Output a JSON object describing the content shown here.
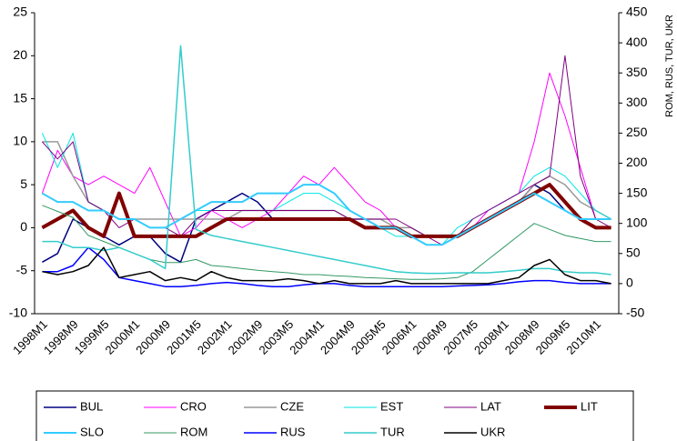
{
  "chart_data": {
    "type": "line",
    "y2_label": "ROM, RUS, TUR, UKR",
    "categories": [
      "1998M1",
      null,
      "1998M9",
      null,
      "1999M5",
      null,
      "2000M1",
      null,
      "2000M9",
      null,
      "2001M5",
      null,
      "2002M1",
      null,
      "2002M9",
      null,
      "2003M5",
      null,
      "2004M1",
      null,
      "2004M9",
      null,
      "2005M5",
      null,
      "2006M1",
      null,
      "2006M9",
      null,
      "2007M5",
      null,
      "2008M1",
      null,
      "2008M9",
      null,
      "2009M5",
      null,
      "2010M1",
      null
    ],
    "ylim": [
      -10,
      25
    ],
    "yticks": [
      -10,
      -5,
      0,
      5,
      10,
      15,
      20,
      25
    ],
    "y2lim": [
      -50,
      450
    ],
    "y2ticks": [
      -50,
      0,
      50,
      100,
      150,
      200,
      250,
      300,
      350,
      400,
      450
    ],
    "legend": "bottom",
    "series": [
      {
        "name": "BUL",
        "color": "#000080",
        "width": 1.5,
        "values": [
          -4,
          -3,
          1,
          0,
          -1,
          -2,
          -1,
          -1,
          -3,
          -4,
          1,
          2,
          3,
          4,
          3,
          1,
          1,
          1,
          1,
          1,
          1,
          1,
          0,
          0,
          -1,
          -2,
          -2,
          -1,
          0,
          1,
          2,
          3,
          5,
          4,
          2,
          1,
          1,
          1
        ]
      },
      {
        "name": "CRO",
        "color": "#ff00ff",
        "width": 1,
        "values": [
          4,
          9,
          6,
          5,
          6,
          5,
          4,
          7,
          3,
          -1,
          0,
          2,
          1,
          0,
          1,
          2,
          4,
          6,
          5,
          7,
          5,
          3,
          2,
          0,
          -1,
          -2,
          -2,
          -1,
          0,
          2,
          3,
          4,
          10,
          18,
          13,
          7,
          1,
          1
        ]
      },
      {
        "name": "CZE",
        "color": "#999999",
        "width": 1.5,
        "values": [
          10,
          10,
          6,
          3,
          2,
          1,
          1,
          1,
          1,
          1,
          1,
          1,
          1,
          2,
          2,
          2,
          2,
          2,
          2,
          2,
          1,
          1,
          1,
          0,
          0,
          -1,
          -1,
          -1,
          0,
          1,
          2,
          3,
          5,
          6,
          5,
          3,
          2,
          1
        ]
      },
      {
        "name": "EST",
        "color": "#00e5e5",
        "width": 1,
        "values": [
          11,
          7,
          11,
          3,
          2,
          1,
          1,
          0,
          0,
          1,
          2,
          2,
          2,
          2,
          2,
          2,
          3,
          4,
          4,
          3,
          2,
          1,
          0,
          -1,
          -1,
          -2,
          -2,
          0,
          1,
          2,
          3,
          4,
          6,
          7,
          6,
          4,
          2,
          1
        ]
      },
      {
        "name": "LAT",
        "color": "#800080",
        "width": 1,
        "values": [
          10,
          8,
          10,
          3,
          2,
          0,
          1,
          0,
          0,
          -1,
          1,
          2,
          2,
          2,
          2,
          2,
          2,
          2,
          2,
          2,
          1,
          1,
          1,
          1,
          0,
          -1,
          -2,
          -1,
          1,
          2,
          3,
          4,
          5,
          6,
          20,
          6,
          1,
          0
        ]
      },
      {
        "name": "LIT",
        "color": "#800000",
        "width": 4,
        "values": [
          0,
          1,
          2,
          0,
          -1,
          4,
          -1,
          -1,
          -1,
          -1,
          -1,
          0,
          1,
          1,
          1,
          1,
          1,
          1,
          1,
          1,
          1,
          0,
          0,
          0,
          -1,
          -1,
          -1,
          -1,
          0,
          1,
          2,
          3,
          4,
          5,
          3,
          1,
          0,
          0
        ]
      },
      {
        "name": "SLO",
        "color": "#33ccff",
        "width": 2,
        "values": [
          4,
          3,
          3,
          2,
          2,
          1,
          1,
          0,
          0,
          1,
          2,
          3,
          3,
          3,
          4,
          4,
          4,
          5,
          5,
          4,
          2,
          1,
          0,
          0,
          -1,
          -2,
          -2,
          -1,
          0,
          1,
          2,
          3,
          4,
          3,
          2,
          1,
          1,
          1
        ]
      },
      {
        "name": "ROM",
        "color": "#339966",
        "width": 1,
        "axis": "y2",
        "values": [
          130,
          120,
          110,
          80,
          70,
          60,
          50,
          40,
          35,
          35,
          40,
          30,
          28,
          25,
          22,
          20,
          18,
          15,
          15,
          13,
          12,
          10,
          9,
          8,
          7,
          7,
          8,
          10,
          20,
          40,
          60,
          80,
          100,
          90,
          80,
          75,
          70,
          70
        ]
      },
      {
        "name": "RUS",
        "color": "#0000ff",
        "width": 1.5,
        "axis": "y2",
        "values": [
          20,
          20,
          30,
          60,
          40,
          10,
          5,
          0,
          -5,
          -5,
          -3,
          0,
          2,
          0,
          -3,
          -5,
          -5,
          -2,
          0,
          0,
          -3,
          -5,
          -5,
          -5,
          -5,
          -5,
          -5,
          -4,
          -3,
          -2,
          0,
          3,
          5,
          5,
          2,
          0,
          0,
          0
        ]
      },
      {
        "name": "TUR",
        "color": "#33cccc",
        "width": 1.5,
        "axis": "y2",
        "values": [
          70,
          70,
          60,
          60,
          55,
          60,
          50,
          40,
          25,
          395,
          90,
          80,
          75,
          70,
          65,
          60,
          55,
          50,
          45,
          40,
          35,
          30,
          25,
          20,
          18,
          17,
          17,
          18,
          18,
          18,
          20,
          22,
          25,
          25,
          20,
          18,
          18,
          15
        ]
      },
      {
        "name": "UKR",
        "color": "#000000",
        "width": 1.5,
        "axis": "y2",
        "values": [
          20,
          15,
          20,
          30,
          60,
          10,
          15,
          20,
          5,
          10,
          5,
          20,
          10,
          5,
          5,
          5,
          8,
          5,
          0,
          5,
          0,
          0,
          0,
          5,
          0,
          0,
          0,
          0,
          0,
          0,
          5,
          10,
          30,
          40,
          15,
          5,
          5,
          0
        ]
      }
    ]
  }
}
